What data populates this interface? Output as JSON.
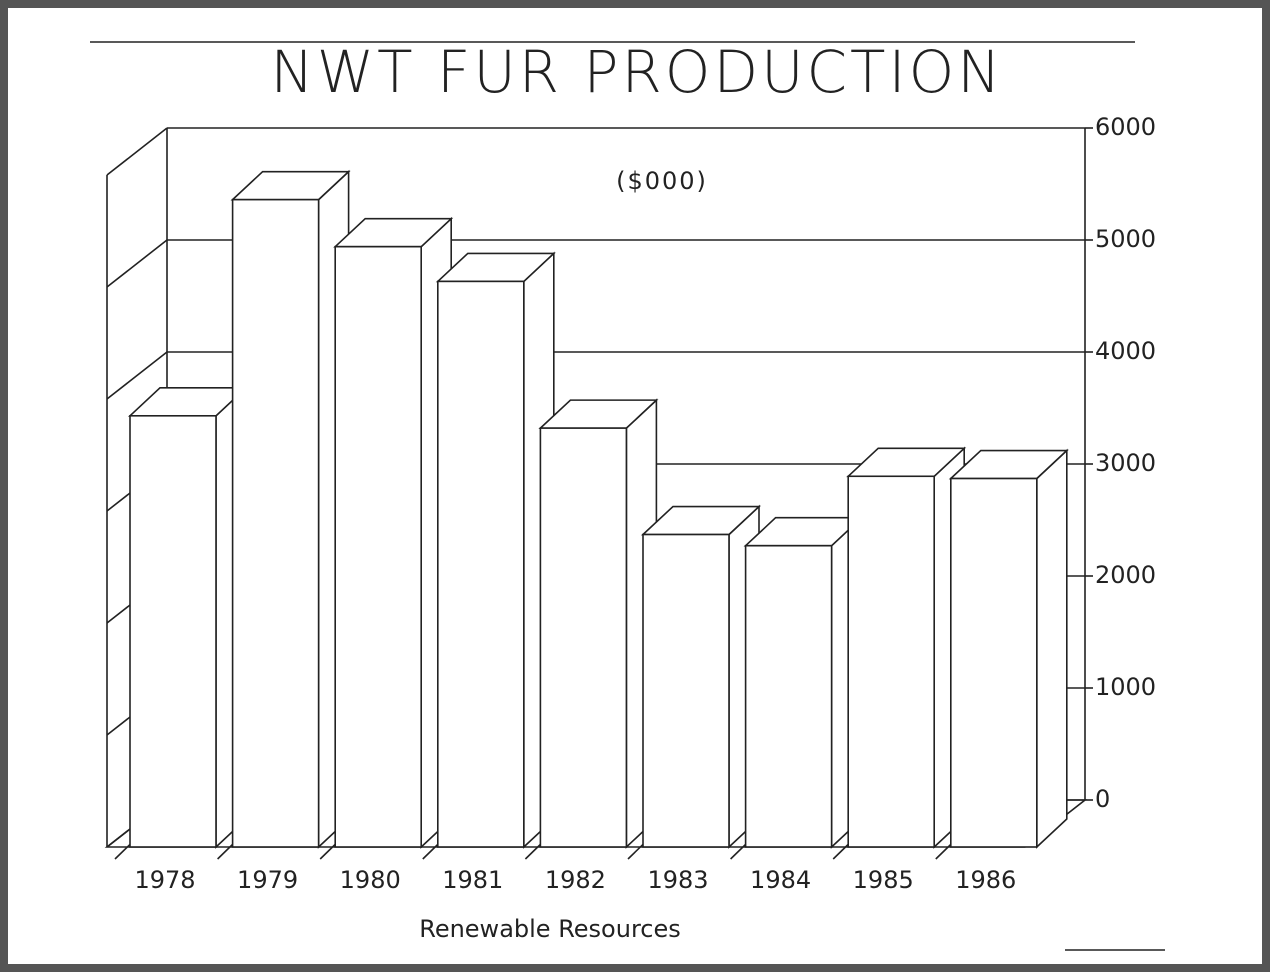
{
  "chart_data": {
    "type": "bar",
    "title": "NWT FUR PRODUCTION",
    "subtitle": "($000)",
    "xlabel": "Renewable Resources",
    "categories": [
      "1978",
      "1979",
      "1980",
      "1981",
      "1982",
      "1983",
      "1984",
      "1985",
      "1986"
    ],
    "values": [
      3850,
      5780,
      5360,
      5050,
      3740,
      2790,
      2690,
      3310,
      3290
    ],
    "color": "#ffffff",
    "ylim": [
      0,
      6000
    ],
    "yticks": [
      0,
      1000,
      2000,
      3000,
      4000,
      5000,
      6000
    ],
    "grid": true
  }
}
